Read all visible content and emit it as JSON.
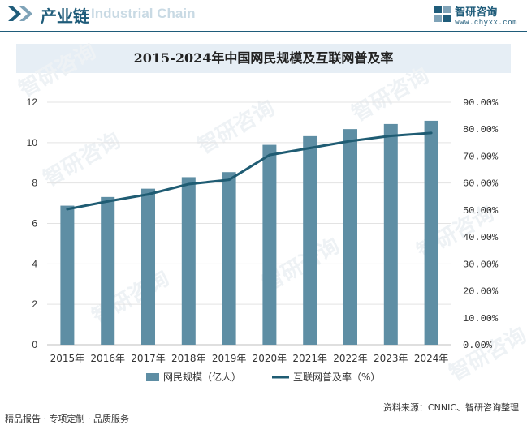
{
  "header": {
    "title": "产业链",
    "ghost_text": "Industrial Chain",
    "brand_name": "智研咨询",
    "brand_url": "www.chyxx.com"
  },
  "watermark": "智研咨询",
  "colors": {
    "bar": "#5e8ea4",
    "line": "#1f5c73",
    "header": "#1f5c7a",
    "title_bg": "#e6eef5"
  },
  "chart_data": {
    "type": "bar",
    "title": "2015-2024年中国网民规模及互联网普及率",
    "categories": [
      "2015年",
      "2016年",
      "2017年",
      "2018年",
      "2019年",
      "2020年",
      "2021年",
      "2022年",
      "2023年",
      "2024年"
    ],
    "series": [
      {
        "name": "网民规模（亿人）",
        "kind": "bar",
        "axis": "left",
        "values": [
          6.88,
          7.31,
          7.72,
          8.29,
          8.54,
          9.89,
          10.32,
          10.67,
          10.92,
          11.08
        ]
      },
      {
        "name": "互联网普及率（%）",
        "kind": "line",
        "axis": "right",
        "values": [
          50.3,
          53.2,
          55.8,
          59.6,
          61.2,
          70.4,
          73.0,
          75.6,
          77.5,
          78.6
        ]
      }
    ],
    "left_axis": {
      "ylim": [
        0,
        12
      ],
      "ticks": [
        "0",
        "2",
        "4",
        "6",
        "8",
        "10",
        "12"
      ]
    },
    "right_axis": {
      "ylim": [
        0,
        90
      ],
      "ticks": [
        "0.00%",
        "10.00%",
        "20.00%",
        "30.00%",
        "40.00%",
        "50.00%",
        "60.00%",
        "70.00%",
        "80.00%",
        "90.00%"
      ]
    },
    "legend_position": "bottom",
    "grid": true
  },
  "footer": {
    "left": "精品报告 · 专项定制 · 品质服务",
    "source": "资料来源：CNNIC、智研咨询整理"
  }
}
